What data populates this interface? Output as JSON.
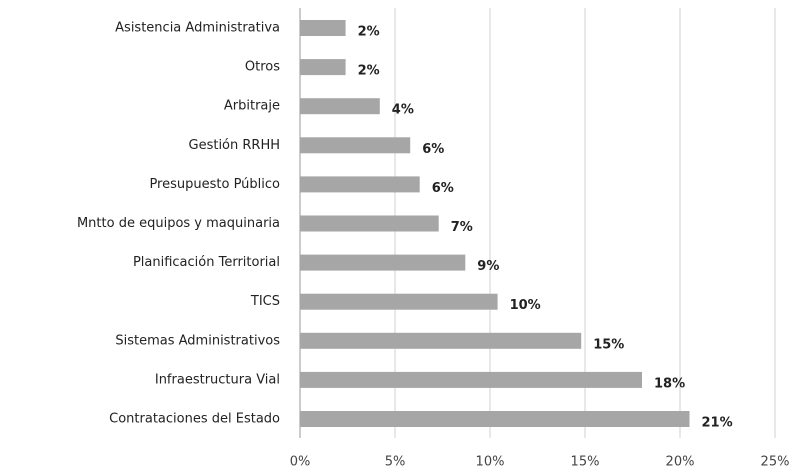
{
  "chart_data": {
    "type": "bar",
    "orientation": "horizontal",
    "categories": [
      "Asistencia Administrativa",
      "Otros",
      "Arbitraje",
      "Gestión RRHH",
      "Presupuesto Público",
      "Mntto de equipos y maquinaria",
      "Planificación Territorial",
      "TICS",
      "Sistemas Administrativos",
      "Infraestructura Vial",
      "Contrataciones del Estado"
    ],
    "values": [
      2.4,
      2.4,
      4.2,
      5.8,
      6.3,
      7.3,
      8.7,
      10.4,
      14.8,
      18.0,
      20.5
    ],
    "value_labels": [
      "2%",
      "2%",
      "4%",
      "6%",
      "6%",
      "7%",
      "9%",
      "10%",
      "15%",
      "18%",
      "21%"
    ],
    "color": "#a6a6a6",
    "xlim": [
      0,
      25
    ],
    "xticks": [
      {
        "value": 0,
        "label": "0%"
      },
      {
        "value": 5,
        "label": "5%"
      },
      {
        "value": 10,
        "label": "10%"
      },
      {
        "value": 15,
        "label": "15%"
      },
      {
        "value": 20,
        "label": "20%"
      },
      {
        "value": 25,
        "label": "25%"
      }
    ],
    "grid": true
  }
}
